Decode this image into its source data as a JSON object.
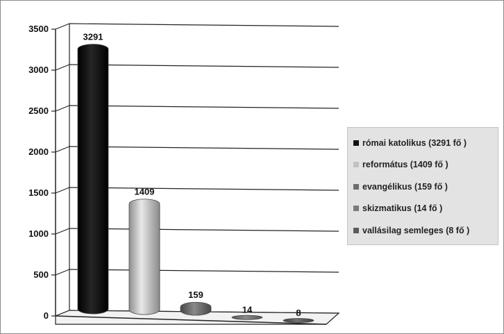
{
  "chart_data": {
    "type": "bar",
    "categories": [
      "római katolikus (3291 fő )",
      "református (1409 fő )",
      "evangélikus (159 fő )",
      "skizmatikus (14 fő )",
      "vallásilag semleges (8 fő )"
    ],
    "values": [
      3291,
      1409,
      159,
      14,
      8
    ],
    "data_labels": [
      "3291",
      "1409",
      "159",
      "14",
      "8"
    ],
    "colors": [
      "#111111",
      "#c2c2c2",
      "#6d6d6d",
      "#7a7a7a",
      "#5a5a5a"
    ],
    "y_ticks": [
      "0",
      "500",
      "1000",
      "1500",
      "2000",
      "2500",
      "3000",
      "3500"
    ],
    "ylim": [
      0,
      3500
    ],
    "title": "",
    "xlabel": "",
    "ylabel": "",
    "grid": true,
    "legend_position": "right",
    "style": "3d-cylinder"
  }
}
